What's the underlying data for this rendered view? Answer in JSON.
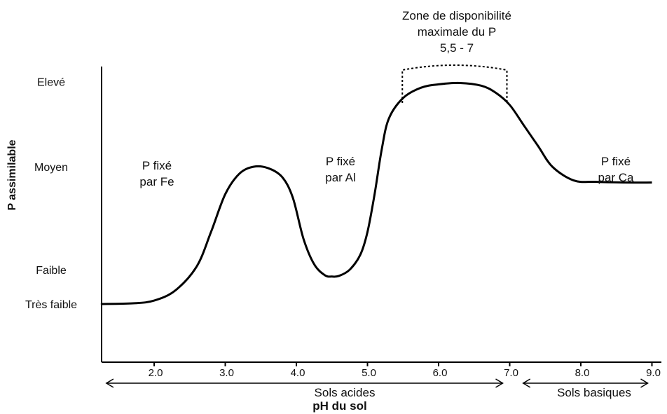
{
  "chart_data": {
    "type": "line",
    "title": "",
    "ylabel": "P assimilable",
    "xlabel": "pH du sol",
    "xlim": [
      1.25,
      9.0
    ],
    "ylim": [
      0,
      4.6
    ],
    "x_ticks": [
      2.0,
      3.0,
      4.0,
      5.0,
      6.0,
      7.0,
      8.0,
      9.0
    ],
    "x_tick_labels": [
      "2.0",
      "3.0",
      "4.0",
      "5.0",
      "6.0",
      "7.0",
      "8.0",
      "9.0"
    ],
    "y_levels": [
      {
        "label": "Très faible",
        "value": 1.0
      },
      {
        "label": "Faible",
        "value": 1.5
      },
      {
        "label": "Moyen",
        "value": 3.0
      },
      {
        "label": "Elevé",
        "value": 4.2
      }
    ],
    "series": [
      {
        "color": "#000000",
        "x": [
          1.25,
          1.7,
          2.0,
          2.3,
          2.6,
          2.8,
          3.0,
          3.2,
          3.4,
          3.6,
          3.8,
          3.95,
          4.1,
          4.25,
          4.4,
          4.5,
          4.6,
          4.75,
          4.9,
          5.0,
          5.1,
          5.2,
          5.3,
          5.5,
          5.75,
          6.0,
          6.3,
          6.6,
          6.8,
          7.0,
          7.2,
          7.4,
          7.6,
          7.9,
          8.2,
          8.6,
          9.0
        ],
        "y": [
          1.0,
          1.01,
          1.05,
          1.2,
          1.55,
          2.05,
          2.6,
          2.9,
          3.0,
          2.98,
          2.85,
          2.55,
          1.95,
          1.58,
          1.42,
          1.4,
          1.41,
          1.5,
          1.72,
          2.05,
          2.6,
          3.25,
          3.7,
          4.0,
          4.15,
          4.2,
          4.22,
          4.18,
          4.08,
          3.9,
          3.6,
          3.3,
          3.0,
          2.8,
          2.78,
          2.77,
          2.77
        ]
      }
    ],
    "annotations": [
      {
        "id": "fe",
        "lines": [
          "P fixé",
          "par Fe"
        ]
      },
      {
        "id": "al",
        "lines": [
          "P fixé",
          "par Al"
        ]
      },
      {
        "id": "ca",
        "lines": [
          "P fixé",
          "par Ca"
        ]
      },
      {
        "id": "zone",
        "lines": [
          "Zone de disponibilité",
          "maximale du P",
          "5,5 - 7"
        ],
        "range": [
          5.5,
          7.0
        ]
      }
    ],
    "ranges": [
      {
        "label": "Sols acides",
        "from": 1.25,
        "to": 7.0
      },
      {
        "label": "Sols basiques",
        "from": 7.15,
        "to": 9.0
      }
    ]
  }
}
